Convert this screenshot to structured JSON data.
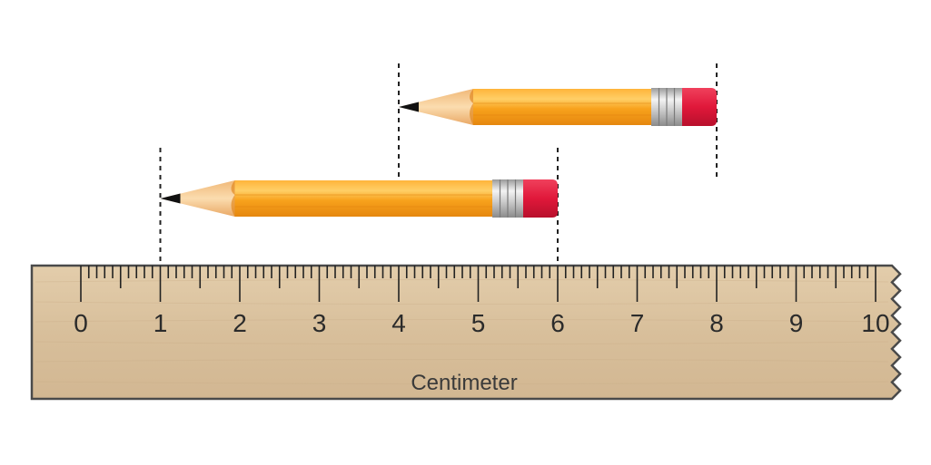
{
  "ruler": {
    "unit_label": "Centimeter",
    "tick_labels": [
      "0",
      "1",
      "2",
      "3",
      "4",
      "5",
      "6",
      "7",
      "8",
      "9",
      "10"
    ],
    "subdivisions_per_unit": 10,
    "colors": {
      "wood": "#dcc4a2",
      "wood_dark": "#c8ad88",
      "border": "#4a4a4a",
      "ticks": "#222222"
    }
  },
  "pencils": [
    {
      "name": "pencil-bottom",
      "start_cm": 1,
      "end_cm": 6
    },
    {
      "name": "pencil-top",
      "start_cm": 4,
      "end_cm": 8
    }
  ],
  "colors": {
    "pencil_body": "#f7a21b",
    "pencil_light": "#ffc85a",
    "pencil_dark": "#e07f0b",
    "wood_tip": "#f6cd95",
    "lead": "#111111",
    "ferrule": "#d8d8d8",
    "eraser": "#e0183a",
    "guide_line": "#222222"
  }
}
